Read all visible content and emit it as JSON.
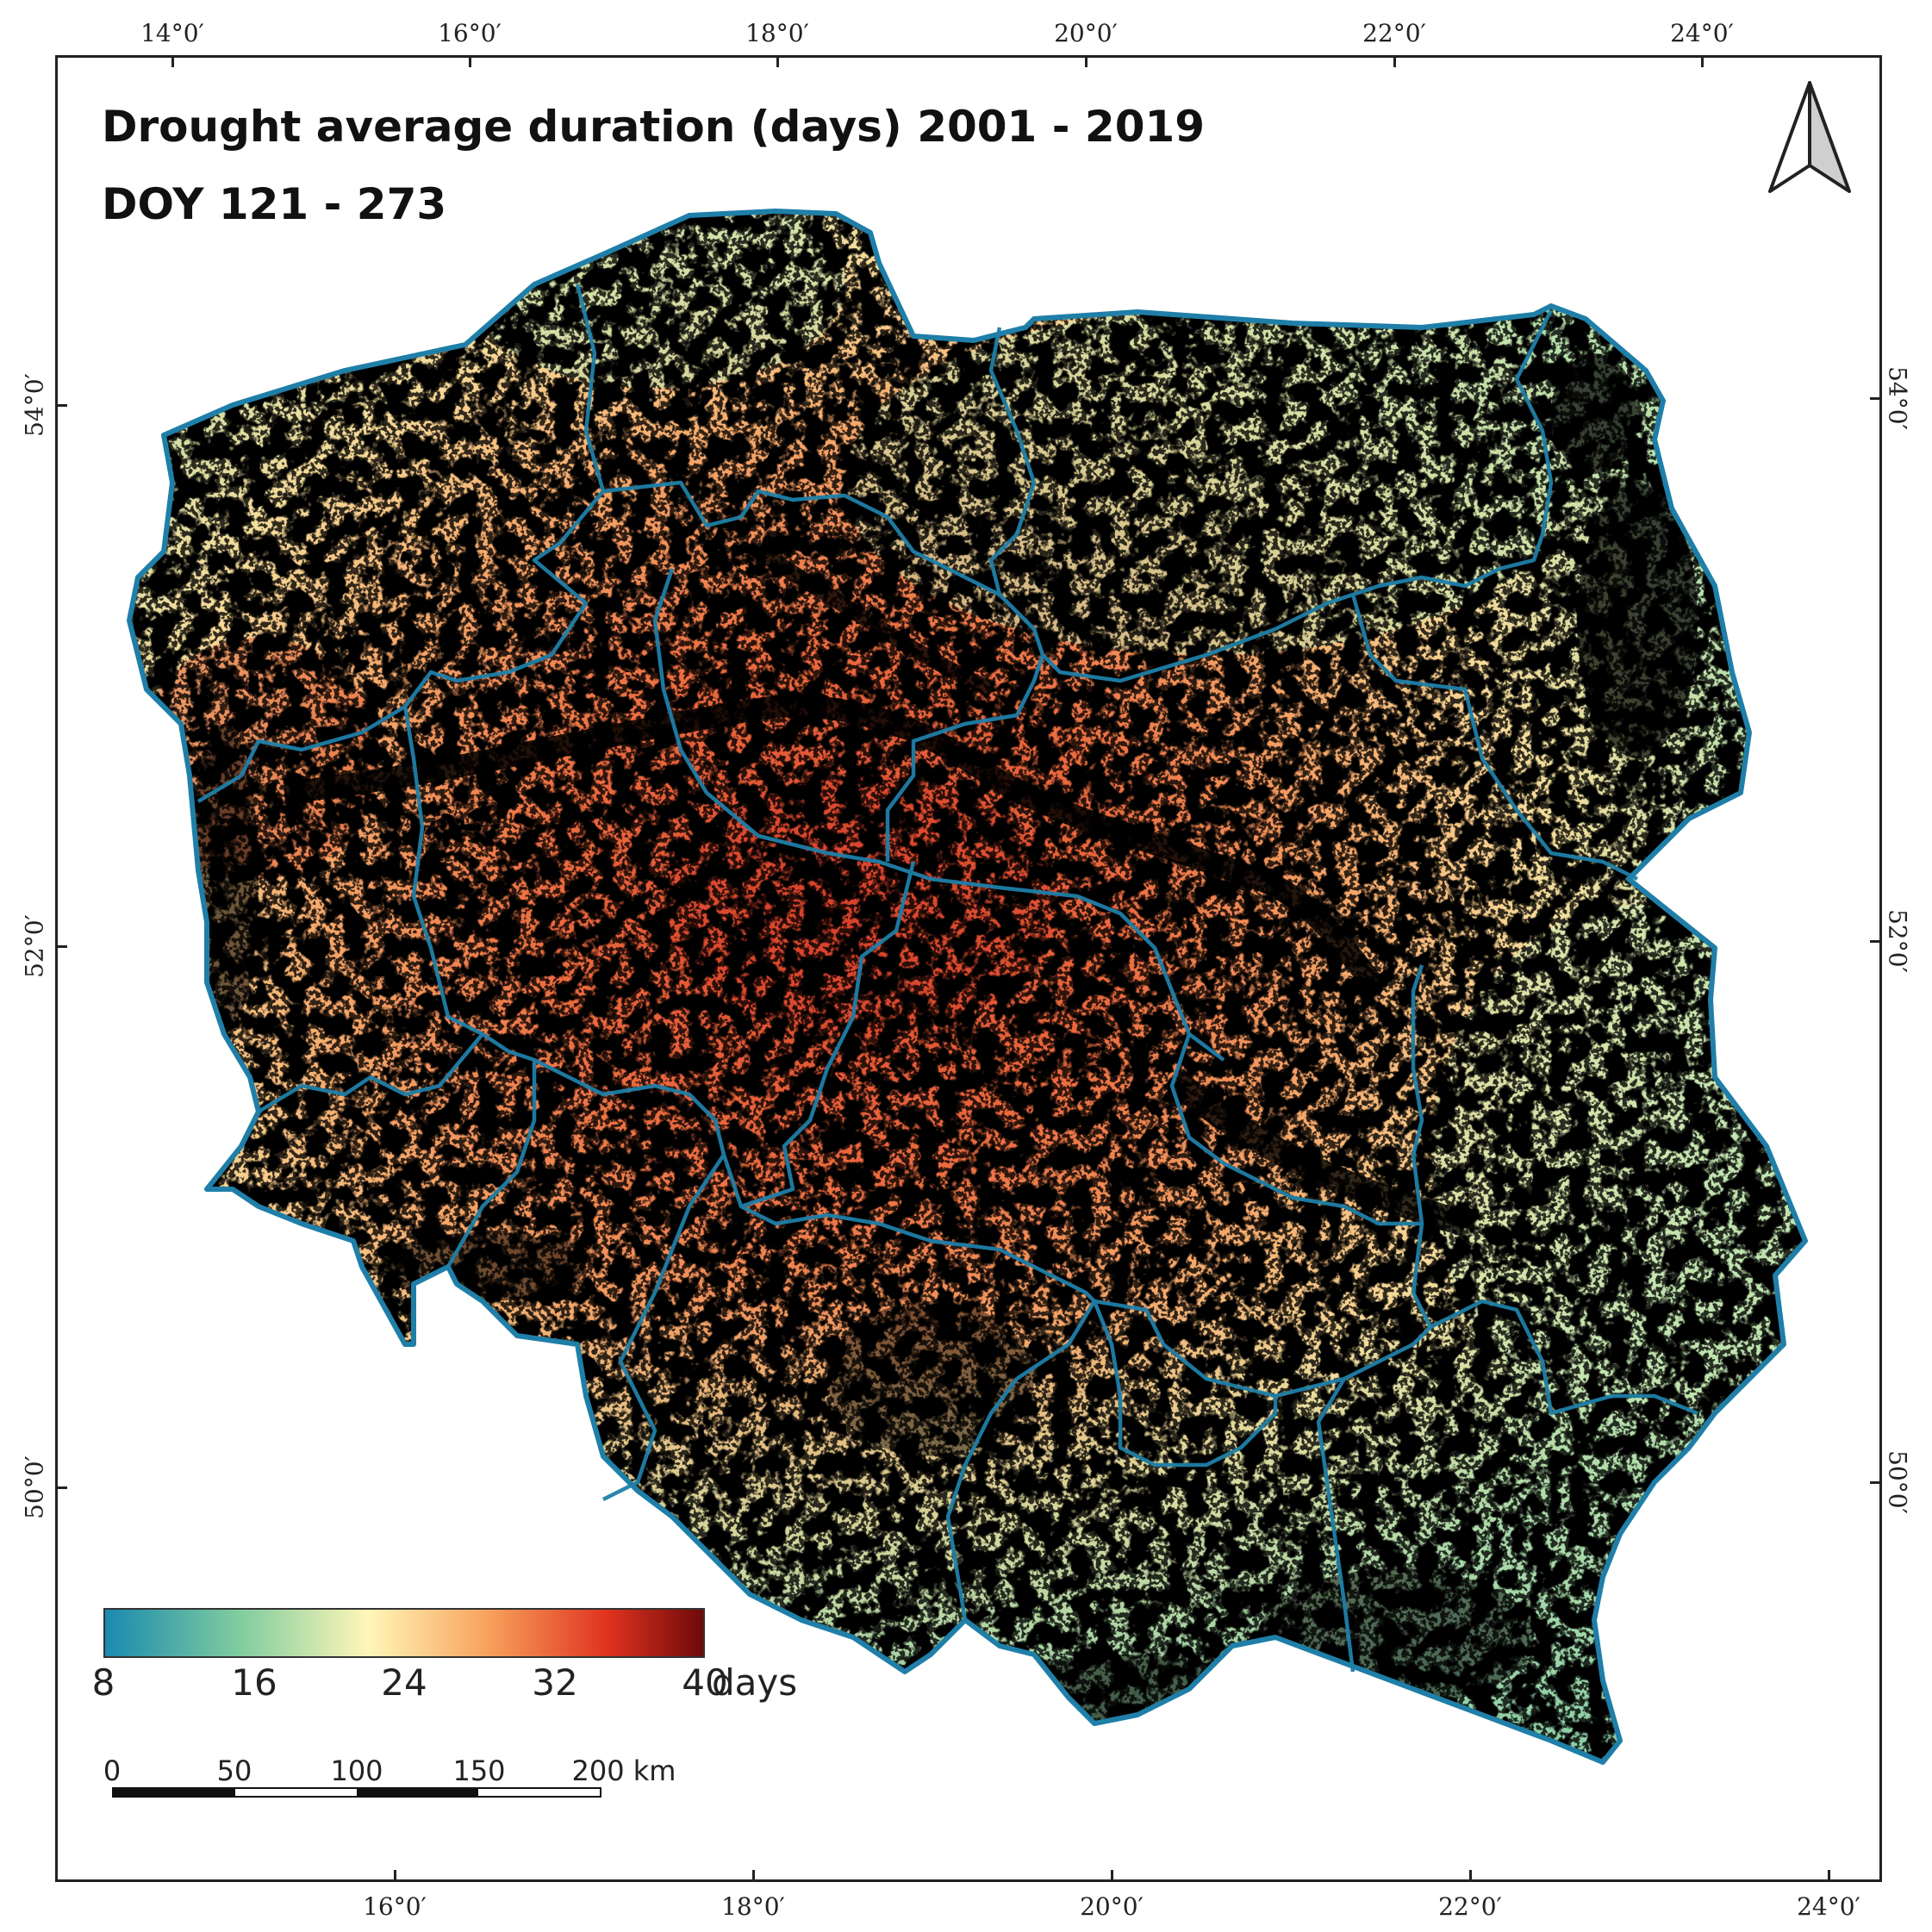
{
  "title": {
    "line1": "Drought average duration (days) 2001 - 2019",
    "line2": "DOY 121 - 273"
  },
  "graticule": {
    "top_labels": [
      "14°0′",
      "16°0′",
      "18°0′",
      "20°0′",
      "22°0′",
      "24°0′"
    ],
    "bottom_labels": [
      "16°0′",
      "18°0′",
      "20°0′",
      "22°0′",
      "24°0′"
    ],
    "left_labels": [
      "54°0′",
      "52°0′",
      "50°0′"
    ],
    "right_labels": [
      "54°0′",
      "52°0′",
      "50°0′"
    ]
  },
  "legend": {
    "ticks": [
      "8",
      "16",
      "24",
      "32",
      "40"
    ],
    "unit": "days",
    "colors": [
      "#1a8ab0",
      "#7ecb9e",
      "#fff7b8",
      "#f7a25c",
      "#e0321f",
      "#6e0a0a"
    ]
  },
  "scale_bar": {
    "labels": [
      "0",
      "50",
      "100",
      "150",
      "200 km"
    ]
  },
  "north_arrow": {
    "icon": "north-arrow-icon"
  },
  "map": {
    "boundary_color": "#1f7fa8",
    "no_data_color": "#000000"
  }
}
